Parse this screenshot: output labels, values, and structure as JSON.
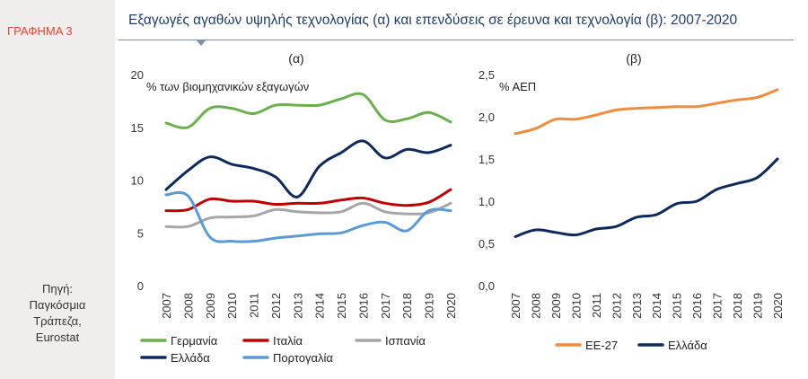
{
  "figure": {
    "label": "ΓΡΑΦΗΜΑ 3",
    "title": "Εξαγωγές αγαθών υψηλής τεχνολογίας (α) και επενδύσεις σε έρευνα και τεχνολογία (β): 2007-2020",
    "source_lines": [
      "Πηγή:",
      "Παγκόσμια",
      "Τράπεζα,",
      "Eurostat"
    ]
  },
  "chart_data": [
    {
      "type": "line",
      "panel": "(α)",
      "ylabel": "% των βιομηχανικών εξαγωγών",
      "ylim": [
        0,
        20
      ],
      "yticks": [
        0,
        5,
        10,
        15,
        20
      ],
      "ytick_labels": [
        "0",
        "5",
        "10",
        "15",
        "20"
      ],
      "x": [
        "2007",
        "2008",
        "2009",
        "2010",
        "2011",
        "2012",
        "2013",
        "2014",
        "2015",
        "2016",
        "2017",
        "2018",
        "2019",
        "2020"
      ],
      "series": [
        {
          "name": "Γερμανία",
          "color": "#6ab04c",
          "values": [
            15.4,
            15.0,
            16.8,
            16.8,
            16.3,
            17.1,
            17.1,
            17.1,
            17.7,
            18.1,
            15.7,
            15.8,
            16.4,
            15.5
          ]
        },
        {
          "name": "Ιταλία",
          "color": "#c00000",
          "values": [
            7.1,
            7.2,
            8.2,
            8.0,
            8.0,
            7.7,
            7.8,
            7.8,
            8.1,
            8.3,
            7.8,
            7.6,
            7.9,
            9.1
          ]
        },
        {
          "name": "Ισπανία",
          "color": "#a6a6a6",
          "values": [
            5.6,
            5.6,
            6.4,
            6.5,
            6.6,
            7.2,
            7.0,
            6.9,
            7.0,
            7.8,
            7.0,
            6.8,
            6.9,
            7.8
          ]
        },
        {
          "name": "Ελλάδα",
          "color": "#0e2a5c",
          "values": [
            9.1,
            10.9,
            12.2,
            11.5,
            11.1,
            10.3,
            8.4,
            11.3,
            12.6,
            13.7,
            12.1,
            12.9,
            12.6,
            13.3
          ]
        },
        {
          "name": "Πορτογαλία",
          "color": "#5b9bd5",
          "values": [
            8.6,
            8.5,
            4.6,
            4.2,
            4.2,
            4.5,
            4.7,
            4.9,
            5.0,
            5.7,
            6.0,
            5.2,
            7.1,
            7.1
          ]
        }
      ]
    },
    {
      "type": "line",
      "panel": "(β)",
      "ylabel": "% ΑΕΠ",
      "ylim": [
        0,
        2.5
      ],
      "yticks": [
        0,
        0.5,
        1.0,
        1.5,
        2.0,
        2.5
      ],
      "ytick_labels": [
        "0,0",
        "0,5",
        "1,0",
        "1,5",
        "2,0",
        "2,5"
      ],
      "x": [
        "2007",
        "2008",
        "2009",
        "2010",
        "2011",
        "2012",
        "2013",
        "2014",
        "2015",
        "2016",
        "2017",
        "2018",
        "2019",
        "2020"
      ],
      "series": [
        {
          "name": "ΕΕ-27",
          "color": "#f08c3c",
          "values": [
            1.8,
            1.86,
            1.97,
            1.97,
            2.02,
            2.08,
            2.1,
            2.11,
            2.12,
            2.12,
            2.16,
            2.2,
            2.23,
            2.32
          ]
        },
        {
          "name": "Ελλάδα",
          "color": "#0e2a5c",
          "values": [
            0.58,
            0.66,
            0.63,
            0.6,
            0.67,
            0.7,
            0.81,
            0.84,
            0.97,
            1.0,
            1.14,
            1.21,
            1.28,
            1.5
          ]
        }
      ]
    }
  ]
}
